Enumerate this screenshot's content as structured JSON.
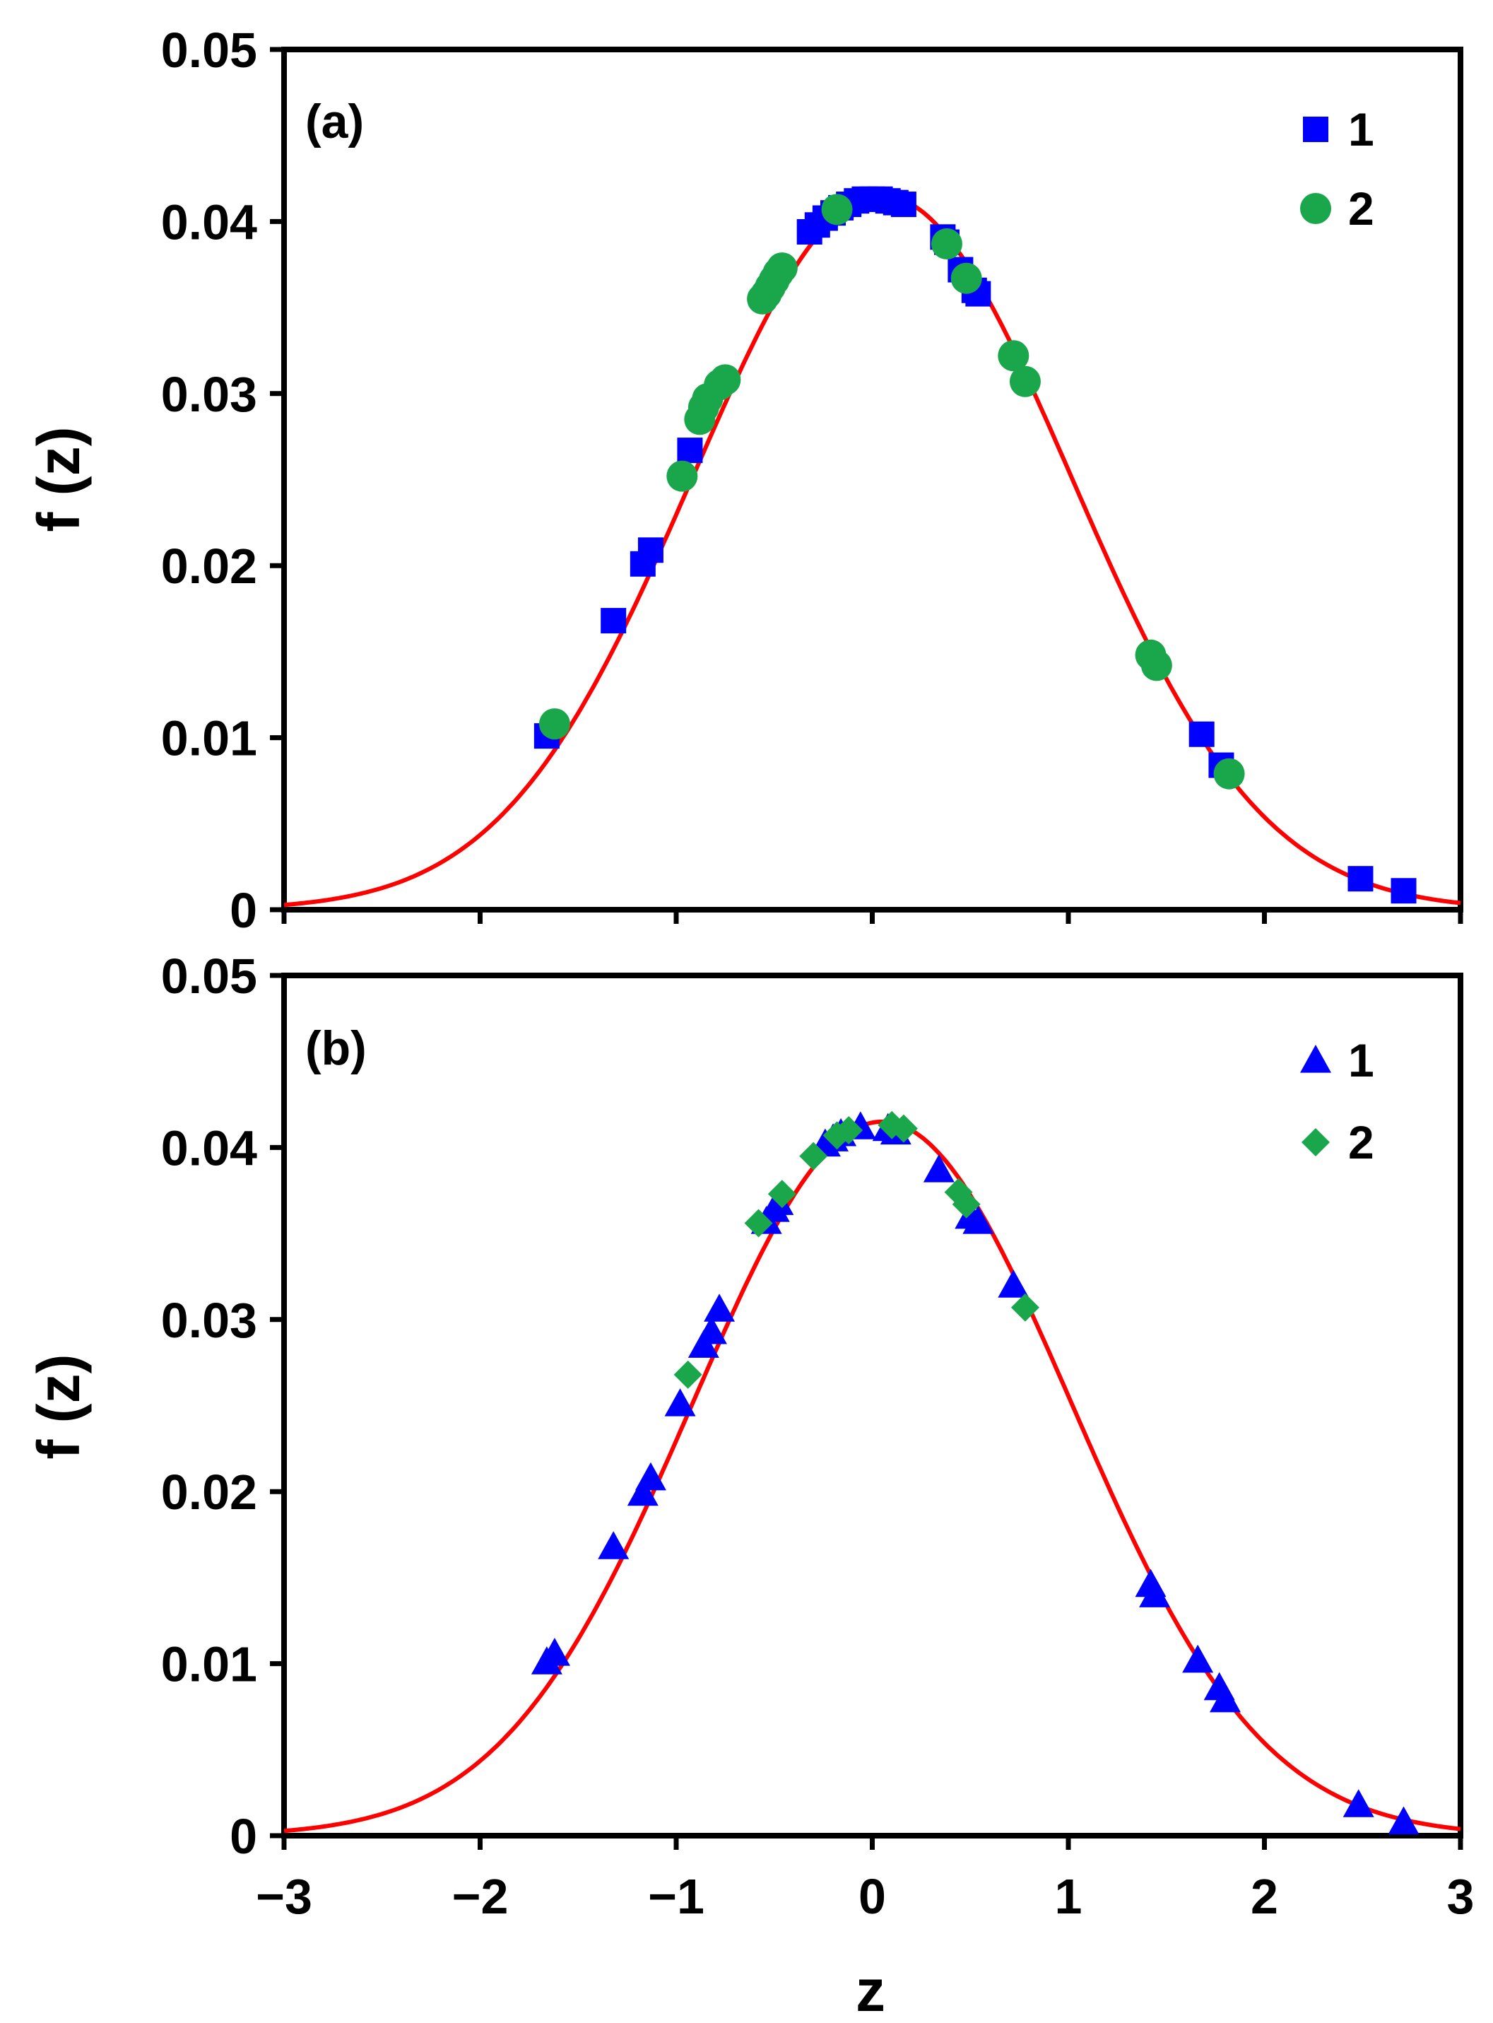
{
  "chart_data": [
    {
      "type": "scatter",
      "panel_label": "(a)",
      "xlim": [
        -3,
        3
      ],
      "ylim": [
        0,
        0.05
      ],
      "xticks": [
        -3,
        -2,
        -1,
        0,
        1,
        2,
        3
      ],
      "yticks": [
        0,
        0.01,
        0.02,
        0.03,
        0.04,
        0.05
      ],
      "ytick_labels": [
        "0",
        "0.01",
        "0.02",
        "0.03",
        "0.04",
        "0.05"
      ],
      "xlabel": "",
      "ylabel": "f (z)",
      "legend_position": "top-right",
      "grid": false,
      "curve": {
        "name": "fitted Gaussian",
        "type": "line",
        "color": "#ff0000",
        "mean": 0.05,
        "sd": 0.965,
        "peak": 0.0415
      },
      "series": [
        {
          "name": "1",
          "marker": "square",
          "color": "#0000ff",
          "points": [
            [
              -1.66,
              0.0101
            ],
            [
              -1.32,
              0.0168
            ],
            [
              -1.17,
              0.0201
            ],
            [
              -1.13,
              0.0209
            ],
            [
              -0.93,
              0.0267
            ],
            [
              -0.32,
              0.0394
            ],
            [
              -0.28,
              0.0398
            ],
            [
              -0.24,
              0.0402
            ],
            [
              -0.2,
              0.0405
            ],
            [
              -0.16,
              0.0408
            ],
            [
              -0.12,
              0.041
            ],
            [
              -0.08,
              0.0412
            ],
            [
              -0.04,
              0.0413
            ],
            [
              0.0,
              0.0413
            ],
            [
              0.04,
              0.0413
            ],
            [
              0.08,
              0.0412
            ],
            [
              0.12,
              0.0411
            ],
            [
              0.16,
              0.041
            ],
            [
              0.36,
              0.0391
            ],
            [
              0.38,
              0.0388
            ],
            [
              0.45,
              0.0372
            ],
            [
              0.52,
              0.036
            ],
            [
              0.54,
              0.0358
            ],
            [
              1.68,
              0.0102
            ],
            [
              1.78,
              0.0084
            ],
            [
              2.49,
              0.0018
            ],
            [
              2.71,
              0.0011
            ]
          ]
        },
        {
          "name": "2",
          "marker": "circle",
          "color": "#1aa64a",
          "points": [
            [
              -1.62,
              0.0108
            ],
            [
              -0.97,
              0.0252
            ],
            [
              -0.88,
              0.0285
            ],
            [
              -0.86,
              0.0292
            ],
            [
              -0.84,
              0.0297
            ],
            [
              -0.78,
              0.0305
            ],
            [
              -0.75,
              0.0308
            ],
            [
              -0.56,
              0.0355
            ],
            [
              -0.54,
              0.0358
            ],
            [
              -0.52,
              0.0362
            ],
            [
              -0.5,
              0.0366
            ],
            [
              -0.48,
              0.037
            ],
            [
              -0.46,
              0.0373
            ],
            [
              -0.18,
              0.0407
            ],
            [
              0.38,
              0.0387
            ],
            [
              0.48,
              0.0367
            ],
            [
              0.72,
              0.0322
            ],
            [
              0.78,
              0.0307
            ],
            [
              1.42,
              0.0148
            ],
            [
              1.45,
              0.0142
            ],
            [
              1.82,
              0.0079
            ]
          ]
        }
      ]
    },
    {
      "type": "scatter",
      "panel_label": "(b)",
      "xlim": [
        -3,
        3
      ],
      "ylim": [
        0,
        0.05
      ],
      "xticks": [
        -3,
        -2,
        -1,
        0,
        1,
        2,
        3
      ],
      "xtick_labels": [
        "−3",
        "−2",
        "−1",
        "0",
        "1",
        "2",
        "3"
      ],
      "yticks": [
        0,
        0.01,
        0.02,
        0.03,
        0.04,
        0.05
      ],
      "ytick_labels": [
        "0",
        "0.01",
        "0.02",
        "0.03",
        "0.04",
        "0.05"
      ],
      "xlabel": "z",
      "ylabel": "f (z)",
      "legend_position": "top-right",
      "grid": false,
      "curve": {
        "name": "fitted Gaussian",
        "type": "line",
        "color": "#ff0000",
        "mean": 0.05,
        "sd": 0.965,
        "peak": 0.0415
      },
      "series": [
        {
          "name": "1",
          "marker": "triangle",
          "color": "#0000ff",
          "points": [
            [
              -1.66,
              0.0101
            ],
            [
              -1.62,
              0.0106
            ],
            [
              -1.32,
              0.0168
            ],
            [
              -1.17,
              0.0199
            ],
            [
              -1.13,
              0.0208
            ],
            [
              -0.98,
              0.0251
            ],
            [
              -0.86,
              0.0285
            ],
            [
              -0.82,
              0.0293
            ],
            [
              -0.78,
              0.0306
            ],
            [
              -0.54,
              0.0357
            ],
            [
              -0.5,
              0.0364
            ],
            [
              -0.48,
              0.0368
            ],
            [
              -0.24,
              0.0402
            ],
            [
              -0.2,
              0.0405
            ],
            [
              -0.16,
              0.0408
            ],
            [
              -0.06,
              0.0412
            ],
            [
              0.08,
              0.0411
            ],
            [
              0.12,
              0.0409
            ],
            [
              0.34,
              0.0387
            ],
            [
              0.5,
              0.036
            ],
            [
              0.54,
              0.0357
            ],
            [
              0.72,
              0.032
            ],
            [
              1.42,
              0.0146
            ],
            [
              1.44,
              0.014
            ],
            [
              1.66,
              0.0102
            ],
            [
              1.77,
              0.0086
            ],
            [
              1.8,
              0.0079
            ],
            [
              2.48,
              0.0018
            ],
            [
              2.71,
              0.0008
            ]
          ]
        },
        {
          "name": "2",
          "marker": "diamond",
          "color": "#1aa64a",
          "points": [
            [
              -0.94,
              0.0268
            ],
            [
              -0.58,
              0.0356
            ],
            [
              -0.46,
              0.0373
            ],
            [
              -0.3,
              0.0395
            ],
            [
              -0.18,
              0.0407
            ],
            [
              -0.12,
              0.041
            ],
            [
              0.1,
              0.0413
            ],
            [
              0.16,
              0.0411
            ],
            [
              0.44,
              0.0374
            ],
            [
              0.48,
              0.0367
            ],
            [
              0.78,
              0.0307
            ]
          ]
        }
      ]
    }
  ]
}
